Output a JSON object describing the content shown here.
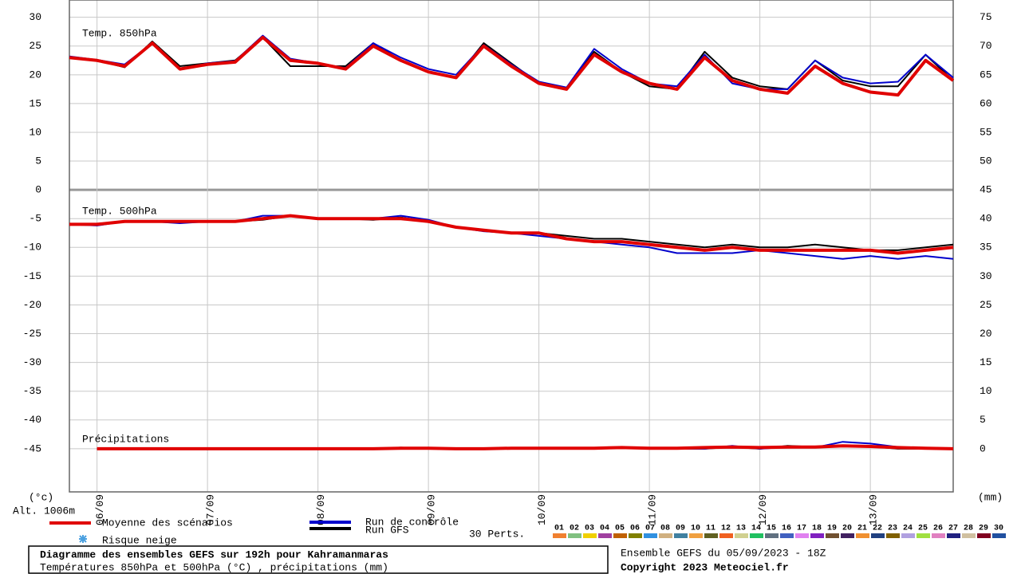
{
  "chart_data": {
    "type": "line",
    "title": "Diagramme des ensembles GEFS sur 192h pour Kahramanmaras",
    "subtitle": "Températures 850hPa et 500hPa (°C) , précipitations (mm)",
    "run": "Ensemble GEFS du 05/09/2023 - 18Z",
    "copyright": "Copyright 2023 Meteociel.fr",
    "altitude": "Alt. 1006m",
    "ylabel": "(°c)",
    "y2label": "(mm)",
    "categories": [
      null,
      "06/09",
      null,
      null,
      null,
      "07/09",
      null,
      null,
      null,
      "08/09",
      null,
      null,
      null,
      "09/09",
      null,
      null,
      null,
      "10/09",
      null,
      null,
      null,
      "11/09",
      null,
      null,
      null,
      "12/09",
      null,
      null,
      null,
      "13/09",
      null,
      null,
      null
    ],
    "ylim": [
      -52.5,
      33
    ],
    "yticks": [
      30,
      25,
      20,
      15,
      10,
      5,
      0,
      -5,
      -10,
      -15,
      -20,
      -25,
      -30,
      -35,
      -40,
      -45
    ],
    "y2lim": [
      -7.5,
      78
    ],
    "y2ticks": [
      75,
      70,
      65,
      60,
      55,
      50,
      45,
      40,
      35,
      30,
      25,
      20,
      15,
      10,
      5,
      0
    ],
    "grid": true,
    "legend": [
      {
        "name": "Moyenne des scénarios",
        "color": "#e00000"
      },
      {
        "name": "Run de contrôle",
        "color": "#0000cc"
      },
      {
        "name": "Run GFS",
        "color": "#000000"
      }
    ],
    "snow": "Risque neige",
    "perts": {
      "label": "30 Perts.",
      "items": [
        {
          "name": "01",
          "color": "#f08030"
        },
        {
          "name": "02",
          "color": "#80c080"
        },
        {
          "name": "03",
          "color": "#f0d000"
        },
        {
          "name": "04",
          "color": "#a040a0"
        },
        {
          "name": "05",
          "color": "#c06000"
        },
        {
          "name": "06",
          "color": "#808000"
        },
        {
          "name": "07",
          "color": "#3090e0"
        },
        {
          "name": "08",
          "color": "#d0b080"
        },
        {
          "name": "09",
          "color": "#4080a0"
        },
        {
          "name": "10",
          "color": "#f0a040"
        },
        {
          "name": "11",
          "color": "#606020"
        },
        {
          "name": "12",
          "color": "#f06020"
        },
        {
          "name": "13",
          "color": "#d0d090"
        },
        {
          "name": "14",
          "color": "#20c060"
        },
        {
          "name": "15",
          "color": "#607080"
        },
        {
          "name": "16",
          "color": "#4060c0"
        },
        {
          "name": "17",
          "color": "#e080f0"
        },
        {
          "name": "18",
          "color": "#8020c0"
        },
        {
          "name": "19",
          "color": "#705030"
        },
        {
          "name": "20",
          "color": "#402060"
        },
        {
          "name": "21",
          "color": "#f09030"
        },
        {
          "name": "22",
          "color": "#204080"
        },
        {
          "name": "23",
          "color": "#806000"
        },
        {
          "name": "24",
          "color": "#b0a0e0"
        },
        {
          "name": "25",
          "color": "#a0e040"
        },
        {
          "name": "26",
          "color": "#e080c0"
        },
        {
          "name": "27",
          "color": "#202080"
        },
        {
          "name": "28",
          "color": "#d0c0a0"
        },
        {
          "name": "29",
          "color": "#800020"
        },
        {
          "name": "30",
          "color": "#2050a0"
        }
      ]
    },
    "panels": [
      {
        "label": "Temp. 850hPa",
        "series": [
          {
            "color": "#000000",
            "values": [
              23,
              22.5,
              21.3,
              25.8,
              21.5,
              22,
              22.5,
              26.5,
              21.5,
              21.5,
              21.5,
              25.5,
              22.5,
              20.5,
              19.5,
              25.5,
              22,
              18.5,
              17.5,
              24,
              20.5,
              18,
              17.5,
              24,
              19.5,
              18,
              17.5,
              22.5,
              19,
              18,
              18,
              23.5,
              19
            ]
          },
          {
            "color": "#0000cc",
            "values": [
              23.2,
              22.6,
              21.8,
              25.5,
              21,
              22,
              22.4,
              26.8,
              22.8,
              22,
              21.2,
              25.5,
              23,
              21,
              20,
              25.2,
              21.8,
              18.8,
              17.8,
              24.5,
              21,
              18.5,
              18,
              23.5,
              18.5,
              17.5,
              17.5,
              22.5,
              19.5,
              18.5,
              18.8,
              23.5,
              19.5
            ]
          },
          {
            "color": "#e00000",
            "values": [
              23,
              22.5,
              21.5,
              25.5,
              21,
              21.8,
              22.2,
              26.5,
              22.5,
              22,
              21,
              25,
              22.5,
              20.5,
              19.5,
              25,
              21.5,
              18.5,
              17.5,
              23.5,
              20.5,
              18.5,
              17.5,
              23,
              19,
              17.5,
              16.8,
              21.5,
              18.5,
              17,
              16.5,
              22.5,
              19
            ]
          }
        ]
      },
      {
        "label": "Temp. 500hPa",
        "series": [
          {
            "color": "#000000",
            "values": [
              -6,
              -6,
              -5.5,
              -5.5,
              -5.5,
              -5.5,
              -5.5,
              -5.2,
              -4.5,
              -5,
              -5,
              -5.2,
              -4.8,
              -5.5,
              -6.5,
              -7,
              -7.5,
              -7.5,
              -8,
              -8.5,
              -8.5,
              -9,
              -9.5,
              -10,
              -9.5,
              -10,
              -10,
              -9.5,
              -10,
              -10.5,
              -10.5,
              -10,
              -9.5
            ]
          },
          {
            "color": "#0000cc",
            "values": [
              -6,
              -6.2,
              -5.5,
              -5.5,
              -5.8,
              -5.5,
              -5.5,
              -4.5,
              -4.5,
              -5,
              -5,
              -5,
              -4.5,
              -5.2,
              -6.5,
              -7.2,
              -7.5,
              -8,
              -8.5,
              -9,
              -9.5,
              -10,
              -11,
              -11,
              -11,
              -10.5,
              -11,
              -11.5,
              -12,
              -11.5,
              -12,
              -11.5,
              -12
            ]
          },
          {
            "color": "#e00000",
            "values": [
              -6,
              -6,
              -5.5,
              -5.5,
              -5.5,
              -5.5,
              -5.5,
              -5,
              -4.5,
              -5,
              -5,
              -5,
              -5,
              -5.5,
              -6.5,
              -7,
              -7.5,
              -7.5,
              -8.5,
              -9,
              -9,
              -9.5,
              -10,
              -10.5,
              -10,
              -10.5,
              -10.5,
              -10.5,
              -10.5,
              -10.5,
              -11,
              -10.5,
              -10
            ]
          }
        ]
      },
      {
        "label": "Précipitations",
        "axis": "y2",
        "series": [
          {
            "color": "#000000",
            "values": [
              null,
              0,
              0,
              0,
              0,
              0,
              0,
              0,
              0,
              0,
              0,
              0,
              0.2,
              0,
              0,
              0,
              0,
              0,
              0,
              0,
              0.3,
              0,
              0,
              0,
              0.3,
              0,
              0.5,
              0.3,
              0.6,
              0.4,
              0,
              0,
              0
            ]
          },
          {
            "color": "#0000cc",
            "values": [
              null,
              0,
              0,
              0,
              0,
              0,
              0,
              0,
              0,
              0,
              0,
              0,
              0.1,
              0.1,
              0,
              0,
              0,
              0,
              0,
              0,
              0.2,
              0,
              0,
              0,
              0.5,
              0,
              0.3,
              0.2,
              1.2,
              0.9,
              0.3,
              0,
              0
            ]
          },
          {
            "color": "#e00000",
            "values": [
              null,
              0,
              0,
              0,
              0,
              0,
              0,
              0,
              0,
              0,
              0,
              0,
              0.1,
              0.1,
              0,
              0,
              0.1,
              0.1,
              0.1,
              0.1,
              0.2,
              0.1,
              0.1,
              0.2,
              0.3,
              0.2,
              0.3,
              0.3,
              0.5,
              0.4,
              0.2,
              0.1,
              0
            ]
          }
        ]
      }
    ]
  }
}
